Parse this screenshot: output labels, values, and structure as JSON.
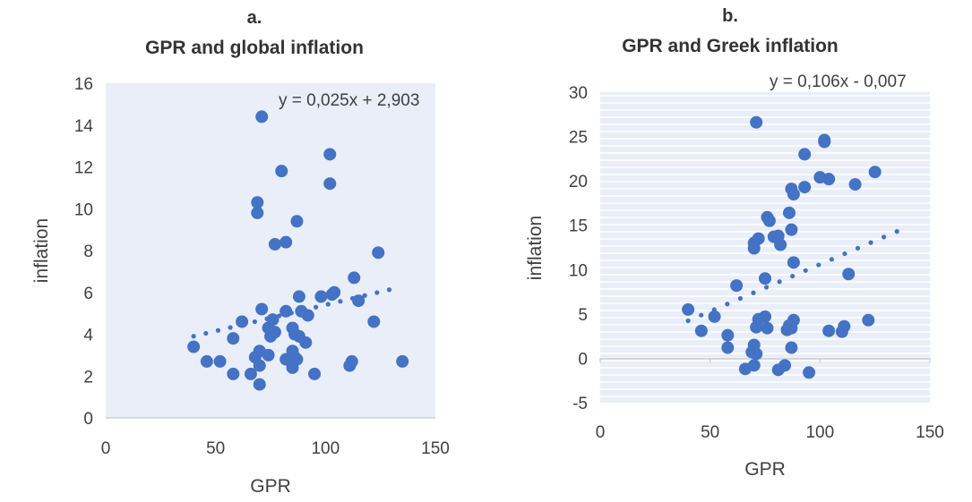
{
  "chart_data": [
    {
      "type": "scatter",
      "panel": "a.",
      "title": "GPR and global inflation",
      "xlabel": "GPR",
      "ylabel": "inflation",
      "xlim": [
        0,
        150
      ],
      "ylim": [
        0,
        16
      ],
      "xticks": [
        0,
        50,
        100,
        150
      ],
      "yticks": [
        0,
        2,
        4,
        6,
        8,
        10,
        12,
        14,
        16
      ],
      "grid": false,
      "plot_bg": "#e9eef8",
      "point_color": "#4472c4",
      "trendline": {
        "equation": "y = 0,025x + 2,903",
        "slope": 0.025,
        "intercept": 2.903,
        "x_range": [
          40,
          129
        ]
      },
      "points": [
        [
          71,
          14.4
        ],
        [
          102,
          12.6
        ],
        [
          80,
          11.8
        ],
        [
          102,
          11.2
        ],
        [
          69,
          10.3
        ],
        [
          69,
          9.8
        ],
        [
          87,
          9.4
        ],
        [
          82,
          8.4
        ],
        [
          77,
          8.3
        ],
        [
          124,
          7.9
        ],
        [
          113,
          6.7
        ],
        [
          104,
          6.0
        ],
        [
          103,
          5.9
        ],
        [
          88,
          5.8
        ],
        [
          98,
          5.8
        ],
        [
          115,
          5.6
        ],
        [
          71,
          5.2
        ],
        [
          82,
          5.1
        ],
        [
          89,
          5.1
        ],
        [
          92,
          4.9
        ],
        [
          76,
          4.7
        ],
        [
          122,
          4.6
        ],
        [
          62,
          4.6
        ],
        [
          74,
          4.3
        ],
        [
          85,
          4.3
        ],
        [
          77,
          4.1
        ],
        [
          86,
          4.0
        ],
        [
          75,
          3.9
        ],
        [
          88,
          3.9
        ],
        [
          58,
          3.8
        ],
        [
          91,
          3.6
        ],
        [
          40,
          3.4
        ],
        [
          70,
          3.2
        ],
        [
          85,
          3.2
        ],
        [
          86,
          2.9
        ],
        [
          74,
          3.0
        ],
        [
          68,
          2.9
        ],
        [
          82,
          2.8
        ],
        [
          87,
          2.8
        ],
        [
          46,
          2.7
        ],
        [
          52,
          2.7
        ],
        [
          112,
          2.7
        ],
        [
          135,
          2.7
        ],
        [
          111,
          2.5
        ],
        [
          70,
          2.5
        ],
        [
          85,
          2.4
        ],
        [
          58,
          2.1
        ],
        [
          66,
          2.1
        ],
        [
          95,
          2.1
        ],
        [
          70,
          1.6
        ]
      ]
    },
    {
      "type": "scatter",
      "panel": "b.",
      "title": "GPR and Greek inflation",
      "xlabel": "GPR",
      "ylabel": "inflation",
      "xlim": [
        0,
        150
      ],
      "ylim": [
        -5,
        30
      ],
      "xticks": [
        0,
        50,
        100,
        150
      ],
      "yticks": [
        -5,
        0,
        5,
        10,
        15,
        20,
        25,
        30
      ],
      "grid": true,
      "plot_bg": "#e9eef8",
      "point_color": "#4472c4",
      "trendline": {
        "equation": "y = 0,106x - 0,007",
        "slope": 0.106,
        "intercept": -0.007,
        "x_range": [
          40,
          135
        ]
      },
      "points": [
        [
          71,
          26.6
        ],
        [
          102,
          24.6
        ],
        [
          102,
          24.4
        ],
        [
          93,
          23.0
        ],
        [
          125,
          21.0
        ],
        [
          100,
          20.4
        ],
        [
          104,
          20.2
        ],
        [
          116,
          19.6
        ],
        [
          93,
          19.3
        ],
        [
          87,
          19.1
        ],
        [
          88,
          18.5
        ],
        [
          86,
          16.4
        ],
        [
          76,
          15.9
        ],
        [
          77,
          15.5
        ],
        [
          87,
          14.5
        ],
        [
          81,
          13.8
        ],
        [
          79,
          13.7
        ],
        [
          72,
          13.5
        ],
        [
          70,
          13.0
        ],
        [
          82,
          12.8
        ],
        [
          70,
          12.4
        ],
        [
          88,
          10.8
        ],
        [
          113,
          9.5
        ],
        [
          75,
          9.0
        ],
        [
          62,
          8.2
        ],
        [
          40,
          5.5
        ],
        [
          52,
          4.7
        ],
        [
          75,
          4.7
        ],
        [
          72,
          4.4
        ],
        [
          88,
          4.3
        ],
        [
          122,
          4.3
        ],
        [
          86,
          3.7
        ],
        [
          111,
          3.6
        ],
        [
          71,
          3.5
        ],
        [
          87,
          3.4
        ],
        [
          76,
          3.4
        ],
        [
          85,
          3.2
        ],
        [
          46,
          3.1
        ],
        [
          104,
          3.1
        ],
        [
          110,
          3.0
        ],
        [
          58,
          2.6
        ],
        [
          70,
          1.5
        ],
        [
          58,
          1.2
        ],
        [
          87,
          1.2
        ],
        [
          69,
          0.7
        ],
        [
          71,
          0.5
        ],
        [
          70,
          -0.8
        ],
        [
          84,
          -0.8
        ],
        [
          66,
          -1.2
        ],
        [
          81,
          -1.3
        ],
        [
          95,
          -1.6
        ]
      ]
    }
  ]
}
